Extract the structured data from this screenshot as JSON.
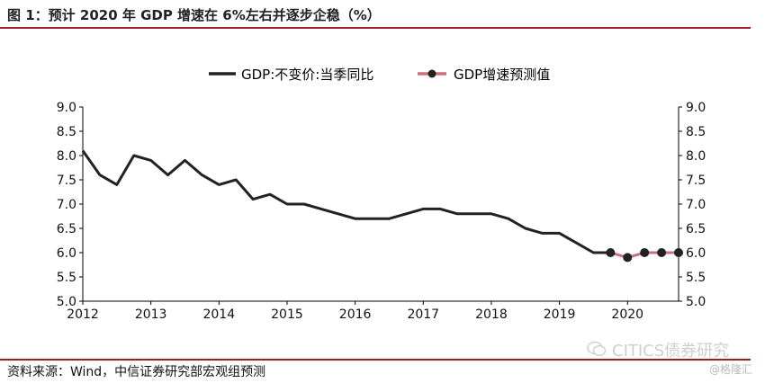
{
  "header": {
    "title": "图 1：预计 2020 年 GDP 增速在 6%左右并逐步企稳（%）"
  },
  "footer": {
    "source": "资料来源：Wind，中信证券研究部宏观组预测"
  },
  "watermark": {
    "main": "CITICS债券研究",
    "sub": "@格隆汇"
  },
  "colors": {
    "rule": "#a01e23",
    "actual_line": "#222222",
    "forecast_line": "#c9707a",
    "forecast_marker": "#222222",
    "axis": "#000000"
  },
  "chart_data": {
    "type": "line",
    "title": "",
    "xlabel": "",
    "ylabel": "",
    "ylim": [
      5.0,
      9.0
    ],
    "yticks": [
      "5.0",
      "5.5",
      "6.0",
      "6.5",
      "7.0",
      "7.5",
      "8.0",
      "8.5",
      "9.0"
    ],
    "y2ticks": [
      "5.0",
      "5.5",
      "6.0",
      "6.5",
      "7.0",
      "7.5",
      "8.0",
      "8.5",
      "9.0"
    ],
    "xticks": [
      "2012",
      "2013",
      "2014",
      "2015",
      "2016",
      "2017",
      "2018",
      "2019",
      "2020"
    ],
    "legend_position": "top",
    "grid": false,
    "series": [
      {
        "name": "GDP:不变价:当季同比",
        "style": "line",
        "x": [
          "2012Q1",
          "2012Q2",
          "2012Q3",
          "2012Q4",
          "2013Q1",
          "2013Q2",
          "2013Q3",
          "2013Q4",
          "2014Q1",
          "2014Q2",
          "2014Q3",
          "2014Q4",
          "2015Q1",
          "2015Q2",
          "2015Q3",
          "2015Q4",
          "2016Q1",
          "2016Q2",
          "2016Q3",
          "2016Q4",
          "2017Q1",
          "2017Q2",
          "2017Q3",
          "2017Q4",
          "2018Q1",
          "2018Q2",
          "2018Q3",
          "2018Q4",
          "2019Q1",
          "2019Q2",
          "2019Q3",
          "2019Q4"
        ],
        "values": [
          8.1,
          7.6,
          7.4,
          8.0,
          7.9,
          7.6,
          7.9,
          7.6,
          7.4,
          7.5,
          7.1,
          7.2,
          7.0,
          7.0,
          6.9,
          6.8,
          6.7,
          6.7,
          6.7,
          6.8,
          6.9,
          6.9,
          6.8,
          6.8,
          6.8,
          6.7,
          6.5,
          6.4,
          6.4,
          6.2,
          6.0,
          6.0
        ]
      },
      {
        "name": "GDP增速预测值",
        "style": "line-marker",
        "x": [
          "2019Q4",
          "2020Q1",
          "2020Q2",
          "2020Q3",
          "2020Q4"
        ],
        "values": [
          6.0,
          5.9,
          6.0,
          6.0,
          6.0
        ]
      }
    ]
  }
}
